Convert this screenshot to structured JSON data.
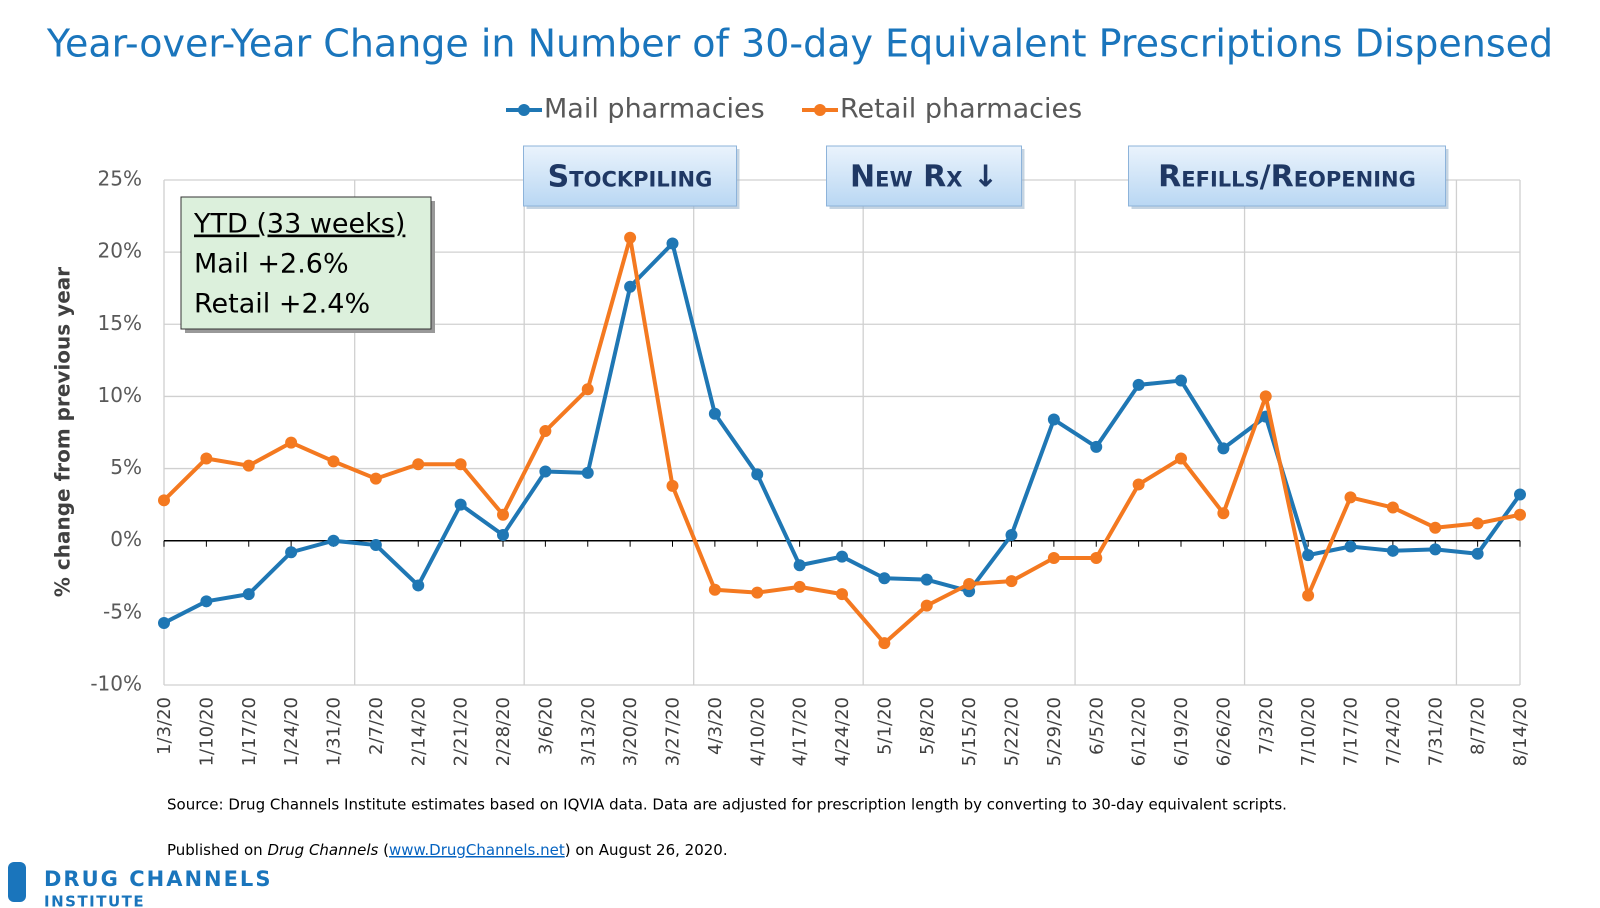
{
  "chart_data": {
    "type": "line",
    "title": "Year-over-Year Change in Number of 30-day Equivalent Prescriptions Dispensed",
    "y_label": "% change from previous year",
    "categories": [
      "1/3/20",
      "1/10/20",
      "1/17/20",
      "1/24/20",
      "1/31/20",
      "2/7/20",
      "2/14/20",
      "2/21/20",
      "2/28/20",
      "3/6/20",
      "3/13/20",
      "3/20/20",
      "3/27/20",
      "4/3/20",
      "4/10/20",
      "4/17/20",
      "4/24/20",
      "5/1/20",
      "5/8/20",
      "5/15/20",
      "5/22/20",
      "5/29/20",
      "6/5/20",
      "6/12/20",
      "6/19/20",
      "6/26/20",
      "7/3/20",
      "7/10/20",
      "7/17/20",
      "7/24/20",
      "7/31/20",
      "8/7/20",
      "8/14/20"
    ],
    "series": [
      {
        "name": "Mail pharmacies",
        "color": "#1f77b4",
        "values": [
          -5.7,
          -4.2,
          -3.7,
          -0.8,
          0.0,
          -0.3,
          -3.1,
          2.5,
          0.4,
          4.8,
          4.7,
          17.6,
          20.6,
          8.8,
          4.6,
          -1.7,
          -1.1,
          -2.6,
          -2.7,
          -3.5,
          0.4,
          8.4,
          6.5,
          10.8,
          11.1,
          6.4,
          8.6,
          -1.0,
          -0.4,
          -0.7,
          -0.6,
          -0.9,
          3.2
        ]
      },
      {
        "name": "Retail pharmacies",
        "color": "#f47920",
        "values": [
          2.8,
          5.7,
          5.2,
          6.8,
          5.5,
          4.3,
          5.3,
          5.3,
          1.8,
          7.6,
          10.5,
          21.0,
          3.8,
          -3.4,
          -3.6,
          -3.2,
          -3.7,
          -7.1,
          -4.5,
          -3.0,
          -2.8,
          -1.2,
          -1.2,
          3.9,
          5.7,
          1.9,
          10.0,
          -3.8,
          3.0,
          2.3,
          0.9,
          1.2,
          1.8
        ]
      }
    ],
    "ylim": [
      -10,
      25
    ],
    "yticks": [
      {
        "value": -10,
        "label": "-10%"
      },
      {
        "value": -5,
        "label": "-5%"
      },
      {
        "value": 0,
        "label": "0%"
      },
      {
        "value": 5,
        "label": "5%"
      },
      {
        "value": 10,
        "label": "10%"
      },
      {
        "value": 15,
        "label": "15%"
      },
      {
        "value": 20,
        "label": "20%"
      },
      {
        "value": 25,
        "label": "25%"
      }
    ],
    "grid": true,
    "legend_position": "top",
    "annotations": [
      "Stockpiling",
      "New Rx ↓",
      "Refills/Reopening"
    ],
    "ytd_box": {
      "title": "YTD (33 weeks)",
      "lines": [
        "Mail +2.6%",
        "Retail +2.4%"
      ]
    }
  },
  "footer": {
    "source": "Source: Drug Channels Institute estimates based on IQVIA data.  Data are adjusted for prescription length by converting to 30-day equivalent scripts.",
    "published": [
      "Published on ",
      "Drug Channels",
      " (",
      "www.DrugChannels.net",
      ") on August 26, 2020."
    ],
    "logo": [
      "DRUG CHANNELS",
      "INSTITUTE"
    ]
  }
}
